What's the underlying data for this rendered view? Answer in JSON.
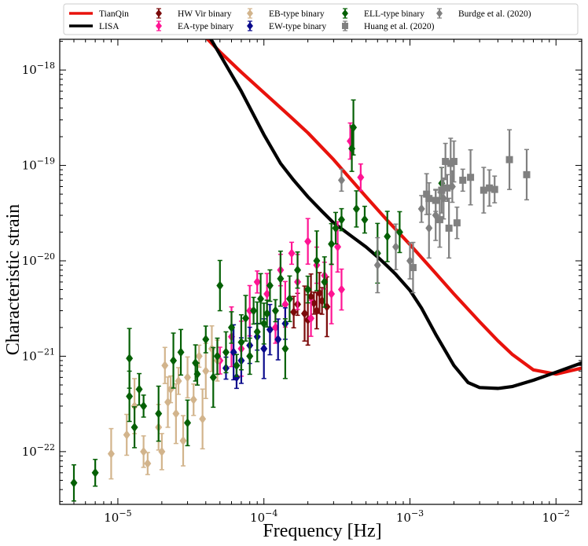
{
  "chart_data": {
    "type": "scatter",
    "title": "",
    "xlabel": "Frequency [Hz]",
    "ylabel": "Characteristic strain",
    "xscale": "log",
    "yscale": "log",
    "xlim": [
      4e-06,
      0.015
    ],
    "ylim": [
      2.8e-23,
      2.1e-18
    ],
    "xticks": [
      {
        "value": 1e-05,
        "base": "10",
        "exp": "−5"
      },
      {
        "value": 0.0001,
        "base": "10",
        "exp": "−4"
      },
      {
        "value": 0.001,
        "base": "10",
        "exp": "−3"
      },
      {
        "value": 0.01,
        "base": "10",
        "exp": "−2"
      }
    ],
    "yticks": [
      {
        "value": 1e-22,
        "base": "10",
        "exp": "−22"
      },
      {
        "value": 1e-21,
        "base": "10",
        "exp": "−21"
      },
      {
        "value": 1e-20,
        "base": "10",
        "exp": "−20"
      },
      {
        "value": 1e-19,
        "base": "10",
        "exp": "−19"
      },
      {
        "value": 1e-18,
        "base": "10",
        "exp": "−18"
      }
    ],
    "grid": false,
    "legend_position": "top",
    "curves": [
      {
        "name": "TianQin",
        "color": "#e8120c",
        "x": [
          4e-05,
          5e-05,
          7e-05,
          0.0001,
          0.00015,
          0.0002,
          0.0003,
          0.0005,
          0.0007,
          0.001,
          0.0015,
          0.002,
          0.003,
          0.004,
          0.005,
          0.007,
          0.01,
          0.015
        ],
        "y": [
          2.2e-18,
          1.55e-18,
          9.5e-19,
          5.8e-19,
          3.3e-19,
          2.2e-19,
          1.15e-19,
          4.7e-20,
          2.65e-20,
          1.48e-20,
          7.4e-21,
          4.5e-21,
          2.3e-21,
          1.45e-21,
          1.05e-21,
          7.2e-22,
          6.5e-22,
          7.5e-22
        ]
      },
      {
        "name": "LISA",
        "color": "#000000",
        "x": [
          4e-05,
          5e-05,
          7e-05,
          0.0001,
          0.00013,
          0.00016,
          0.0002,
          0.00025,
          0.0003,
          0.0004,
          0.0005,
          0.0006,
          0.0007,
          0.0008,
          0.001,
          0.0012,
          0.0015,
          0.002,
          0.0025,
          0.003,
          0.004,
          0.005,
          0.007,
          0.01,
          0.015
        ],
        "y": [
          2.6e-18,
          1.45e-18,
          6e-19,
          2.1e-19,
          1.05e-19,
          7e-20,
          4.7e-20,
          3.3e-20,
          2.5e-20,
          1.8e-20,
          1.4e-20,
          1.1e-20,
          8.8e-21,
          7.2e-21,
          4.9e-21,
          3.2e-21,
          1.7e-21,
          8e-22,
          5.3e-22,
          4.7e-22,
          4.6e-22,
          4.8e-22,
          5.6e-22,
          6.8e-22,
          8.5e-22
        ]
      }
    ],
    "series": [
      {
        "name": "HW Vir binary",
        "color": "#7b0a0a",
        "marker": "diamond",
        "points": [
          [
            0.00017,
            3.5e-21
          ],
          [
            0.00019,
            2.8e-21
          ],
          [
            0.00021,
            4.2e-21
          ],
          [
            0.00023,
            3e-21
          ],
          [
            0.00025,
            3.8e-21
          ],
          [
            0.00027,
            3.3e-21
          ],
          [
            0.0002,
            2.4e-21
          ],
          [
            0.00024,
            4.6e-21
          ],
          [
            0.00016,
            2.9e-21
          ],
          [
            0.00022,
            3.6e-21
          ]
        ]
      },
      {
        "name": "EA-type binary",
        "color": "#ff1493",
        "marker": "diamond",
        "points": [
          [
            0.00039,
            1.8e-19
          ],
          [
            0.00046,
            7.5e-20
          ],
          [
            6e-05,
            1.6e-21
          ],
          [
            8e-05,
            3e-21
          ],
          [
            0.000105,
            4.5e-21
          ],
          [
            0.00013,
            8e-21
          ],
          [
            0.000155,
            1.2e-20
          ],
          [
            0.00017,
            6e-21
          ],
          [
            0.0002,
            1.6e-20
          ],
          [
            0.00023,
            9e-21
          ],
          [
            0.00026,
            7e-21
          ],
          [
            0.00029,
            4.5e-21
          ],
          [
            0.00032,
            1.4e-20
          ],
          [
            0.00034,
            5e-21
          ],
          [
            0.00012,
            2e-21
          ],
          [
            9e-05,
            6e-21
          ],
          [
            7e-05,
            1.2e-21
          ],
          [
            0.00014,
            3.5e-21
          ],
          [
            0.00021,
            2.5e-21
          ],
          [
            5e-05,
            9e-22
          ]
        ]
      },
      {
        "name": "EB-type binary",
        "color": "#d2b48c",
        "marker": "diamond",
        "points": [
          [
            9e-06,
            9.5e-23
          ],
          [
            1.15e-05,
            1.5e-22
          ],
          [
            1.5e-05,
            1e-22
          ],
          [
            1.6e-05,
            7.5e-23
          ],
          [
            1.3e-05,
            3e-22
          ],
          [
            1.9e-05,
            1.8e-22
          ],
          [
            2.1e-05,
            8e-22
          ],
          [
            2.3e-05,
            4.5e-22
          ],
          [
            2.5e-05,
            2.5e-22
          ],
          [
            2.8e-05,
            1.3e-22
          ],
          [
            3e-05,
            6e-22
          ],
          [
            3.3e-05,
            3.5e-22
          ],
          [
            3.6e-05,
            1e-21
          ],
          [
            4e-05,
            7e-22
          ],
          [
            4.4e-05,
            1.2e-21
          ],
          [
            2e-05,
            1e-22
          ],
          [
            2.6e-05,
            5.5e-22
          ],
          [
            3.8e-05,
            2.2e-22
          ],
          [
            2.2e-05,
            3.3e-22
          ],
          [
            4.8e-05,
            9e-22
          ]
        ]
      },
      {
        "name": "EW-type binary",
        "color": "#0a0a8c",
        "marker": "diamond",
        "points": [
          [
            5.5e-05,
            7.5e-22
          ],
          [
            6.2e-05,
            1.1e-21
          ],
          [
            7e-05,
            9e-22
          ],
          [
            8e-05,
            1.3e-21
          ],
          [
            9e-05,
            1.6e-21
          ],
          [
            0.0001,
            1.2e-21
          ],
          [
            0.00011,
            1.9e-21
          ],
          [
            0.000125,
            1.5e-21
          ],
          [
            0.00014,
            2.2e-21
          ],
          [
            6.5e-05,
            6e-22
          ]
        ]
      },
      {
        "name": "ELL-type binary",
        "color": "#056005",
        "marker": "diamond",
        "points": [
          [
            5e-06,
            4.7e-23
          ],
          [
            7e-06,
            6e-23
          ],
          [
            1.2e-05,
            9.5e-22
          ],
          [
            1.2e-05,
            3.8e-22
          ],
          [
            1.3e-05,
            1.8e-22
          ],
          [
            1.4e-05,
            4.5e-22
          ],
          [
            1.5e-05,
            3e-22
          ],
          [
            1.9e-05,
            2.5e-22
          ],
          [
            2.7e-05,
            1.1e-21
          ],
          [
            3.4e-05,
            8.5e-22
          ],
          [
            4e-05,
            1.5e-21
          ],
          [
            4.5e-05,
            6e-22
          ],
          [
            5e-05,
            5.5e-21
          ],
          [
            5.5e-05,
            1.1e-21
          ],
          [
            6e-05,
            2e-21
          ],
          [
            6.5e-05,
            8e-22
          ],
          [
            7e-05,
            1.4e-21
          ],
          [
            7.5e-05,
            2.5e-21
          ],
          [
            8e-05,
            1e-21
          ],
          [
            8.5e-05,
            3e-21
          ],
          [
            9e-05,
            1.8e-21
          ],
          [
            9.5e-05,
            4e-21
          ],
          [
            0.0001,
            2.2e-21
          ],
          [
            0.00011,
            5.5e-21
          ],
          [
            0.00012,
            3e-21
          ],
          [
            0.00013,
            6.5e-21
          ],
          [
            0.00015,
            4e-21
          ],
          [
            0.00017,
            8e-21
          ],
          [
            0.0002,
            5e-21
          ],
          [
            0.00023,
            1e-20
          ],
          [
            0.00026,
            6e-21
          ],
          [
            0.00029,
            1.5e-20
          ],
          [
            0.00031,
            2.2e-20
          ],
          [
            0.00034,
            2.7e-20
          ],
          [
            0.00041,
            2.5e-19
          ],
          [
            0.0004,
            1.5e-19
          ],
          [
            0.00043,
            3.5e-20
          ],
          [
            0.00049,
            2.7e-20
          ],
          [
            0.0006,
            1.2e-20
          ],
          [
            0.0007,
            1.8e-20
          ],
          [
            0.00085,
            2e-20
          ],
          [
            0.00165,
            6.5e-20
          ],
          [
            3.5e-05,
            6.5e-22
          ],
          [
            2.4e-05,
            9e-22
          ],
          [
            3e-05,
            2e-22
          ],
          [
            4.8e-05,
            1e-21
          ],
          [
            0.000105,
            2.8e-21
          ],
          [
            0.00014,
            1.2e-21
          ]
        ]
      },
      {
        "name": "Huang et al. (2020)",
        "color": "#808080",
        "marker": "square",
        "points": [
          [
            0.00105,
            8.5e-21
          ],
          [
            0.0013,
            5e-20
          ],
          [
            0.00135,
            4.5e-20
          ],
          [
            0.0015,
            4.3e-20
          ],
          [
            0.0016,
            2.7e-20
          ],
          [
            0.00165,
            5.5e-20
          ],
          [
            0.00175,
            1.1e-19
          ],
          [
            0.0018,
            5.8e-20
          ],
          [
            0.00185,
            2.2e-20
          ],
          [
            0.0019,
            1.05e-19
          ],
          [
            0.002,
            1.1e-19
          ],
          [
            0.0021,
            2.5e-20
          ],
          [
            0.0023,
            7e-20
          ],
          [
            0.0026,
            7.5e-20
          ],
          [
            0.0032,
            5.5e-20
          ],
          [
            0.0035,
            5.8e-20
          ],
          [
            0.0038,
            5.6e-20
          ],
          [
            0.0048,
            1.15e-19
          ],
          [
            0.0063,
            8e-20
          ]
        ]
      },
      {
        "name": "Burdge et al. (2020)",
        "color": "#808080",
        "marker": "diamond",
        "points": [
          [
            0.00034,
            7e-20
          ],
          [
            0.0006,
            9e-21
          ],
          [
            0.0008,
            1.4e-20
          ],
          [
            0.001,
            1e-20
          ],
          [
            0.0012,
            3.5e-20
          ],
          [
            0.00135,
            2.2e-20
          ],
          [
            0.0015,
            3e-20
          ],
          [
            0.0017,
            4.5e-20
          ],
          [
            0.00195,
            6e-20
          ]
        ]
      }
    ]
  }
}
